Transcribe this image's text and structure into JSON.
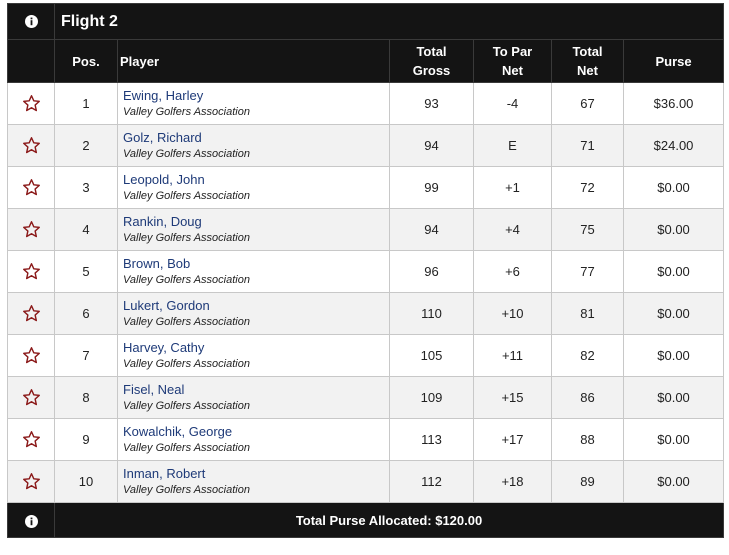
{
  "flight": {
    "title": "Flight 2"
  },
  "columns": {
    "pos": "Pos.",
    "player": "Player",
    "gross_line1": "Total",
    "gross_line2": "Gross",
    "topar_line1": "To Par",
    "topar_line2": "Net",
    "net_line1": "Total",
    "net_line2": "Net",
    "purse": "Purse"
  },
  "rows": [
    {
      "pos": "1",
      "name": "Ewing, Harley",
      "assoc": "Valley Golfers Association",
      "gross": "93",
      "topar": "-4",
      "net": "67",
      "purse": "$36.00"
    },
    {
      "pos": "2",
      "name": "Golz, Richard",
      "assoc": "Valley Golfers Association",
      "gross": "94",
      "topar": "E",
      "net": "71",
      "purse": "$24.00"
    },
    {
      "pos": "3",
      "name": "Leopold, John",
      "assoc": "Valley Golfers Association",
      "gross": "99",
      "topar": "+1",
      "net": "72",
      "purse": "$0.00"
    },
    {
      "pos": "4",
      "name": "Rankin, Doug",
      "assoc": "Valley Golfers Association",
      "gross": "94",
      "topar": "+4",
      "net": "75",
      "purse": "$0.00"
    },
    {
      "pos": "5",
      "name": "Brown, Bob",
      "assoc": "Valley Golfers Association",
      "gross": "96",
      "topar": "+6",
      "net": "77",
      "purse": "$0.00"
    },
    {
      "pos": "6",
      "name": "Lukert, Gordon",
      "assoc": "Valley Golfers Association",
      "gross": "110",
      "topar": "+10",
      "net": "81",
      "purse": "$0.00"
    },
    {
      "pos": "7",
      "name": "Harvey, Cathy",
      "assoc": "Valley Golfers Association",
      "gross": "105",
      "topar": "+11",
      "net": "82",
      "purse": "$0.00"
    },
    {
      "pos": "8",
      "name": "Fisel, Neal",
      "assoc": "Valley Golfers Association",
      "gross": "109",
      "topar": "+15",
      "net": "86",
      "purse": "$0.00"
    },
    {
      "pos": "9",
      "name": "Kowalchik, George",
      "assoc": "Valley Golfers Association",
      "gross": "113",
      "topar": "+17",
      "net": "88",
      "purse": "$0.00"
    },
    {
      "pos": "10",
      "name": "Inman, Robert",
      "assoc": "Valley Golfers Association",
      "gross": "112",
      "topar": "+18",
      "net": "89",
      "purse": "$0.00"
    }
  ],
  "footer": {
    "total_purse": "Total Purse Allocated: $120.00"
  },
  "colors": {
    "header_bg": "#141414",
    "star": "#8b1a1a",
    "name_link": "#1e3a78"
  },
  "icons": {
    "info": "info-icon",
    "favorite": "star-outline-icon"
  }
}
